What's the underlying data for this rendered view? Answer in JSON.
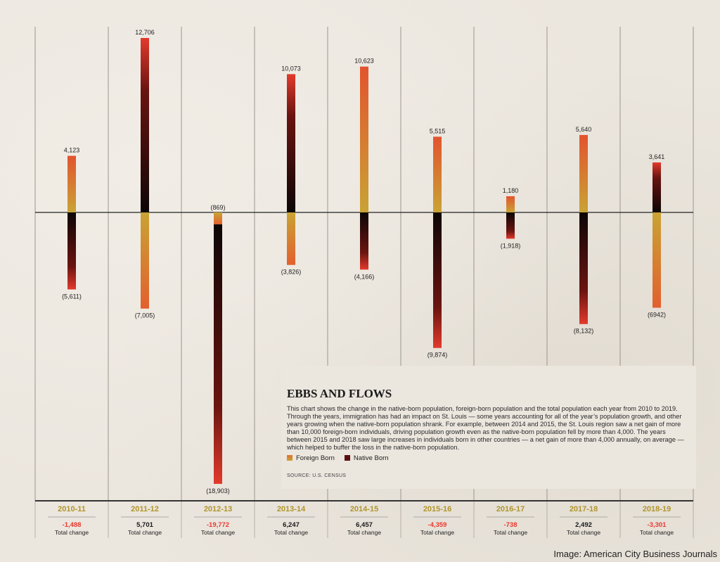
{
  "chart_data": {
    "type": "bar",
    "title": "EBBS AND FLOWS",
    "description": "This chart shows the change in the native-born population, foreign-born population and the total population each year from 2010 to 2019. Through the years, immigration has had an impact on St. Louis — some years accounting for all of the year’s population growth, and other years growing when the native-born population shrank. For example, between 2014 and 2015, the St. Louis region saw a net gain of more than 10,000 foreign-born individuals, driving population growth even as the native-born population fell by more than 4,000. The years between 2015 and 2018 saw large increases in individuals born in other countries — a net gain of more than 4,000 annually, on average — which helped to buffer the loss in the native-born population.",
    "source": "SOURCE: U.S. CENSUS",
    "legend": [
      {
        "name": "Foreign Born",
        "color": "#c9a334"
      },
      {
        "name": "Native Born",
        "color": "#5a0f0f"
      }
    ],
    "categories": [
      "2010-11",
      "2011-12",
      "2012-13",
      "2013-14",
      "2014-15",
      "2015-16",
      "2016-17",
      "2017-18",
      "2018-19"
    ],
    "series": [
      {
        "name": "Foreign Born",
        "values": [
          4123,
          -7005,
          -869,
          -3826,
          10623,
          5515,
          1180,
          5640,
          -6942
        ],
        "labels": [
          "4,123",
          "(7,005)",
          "(869)",
          "(3,826)",
          "10,623",
          "5,515",
          "1,180",
          "5,640",
          "(6942)"
        ]
      },
      {
        "name": "Native Born",
        "values": [
          -5611,
          12706,
          -18903,
          10073,
          -4166,
          -9874,
          -1918,
          -8132,
          3641
        ],
        "labels": [
          "(5,611)",
          "12,706",
          "(18,903)",
          "10,073",
          "(4,166)",
          "(9,874)",
          "(1,918)",
          "(8,132)",
          "3,641"
        ]
      }
    ],
    "totals": [
      -1488,
      5701,
      -19772,
      6247,
      6457,
      -4359,
      -738,
      2492,
      -3301
    ],
    "total_labels": [
      "-1,488",
      "5,701",
      "-19,772",
      "6,247",
      "6,457",
      "-4,359",
      "-738",
      "2,492",
      "-3,301"
    ],
    "total_caption": "Total change",
    "ylim": [
      -18903,
      12706
    ],
    "colors": {
      "year": "#b0952a",
      "negative": "#e8392f",
      "positive": "#1a1a1a"
    }
  },
  "credit": "Image: American City Business Journals"
}
